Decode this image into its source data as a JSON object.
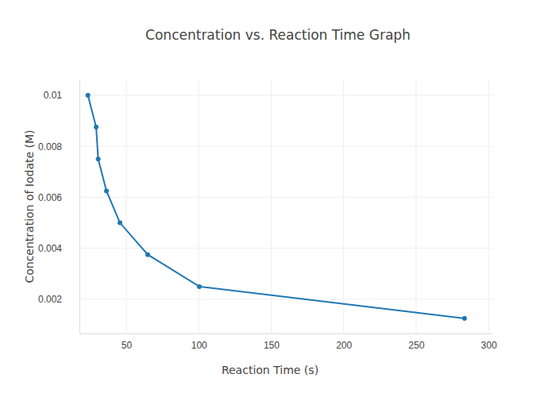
{
  "chart_data": {
    "type": "line",
    "title": "Concentration vs. Reaction Time Graph",
    "x_label": "Reaction Time (s)",
    "y_label": "Concentration of Iodate (M)",
    "x": [
      23.5,
      29.2,
      30.6,
      36.3,
      45.6,
      64.8,
      100.4,
      283.4
    ],
    "values": [
      0.01,
      0.00875,
      0.0075,
      0.00625,
      0.005,
      0.00375,
      0.0025,
      0.00125
    ],
    "color": "#1f77b4",
    "marker": "circle",
    "line_style": "solid",
    "xlim": [
      17.65,
      302.7
    ],
    "xticks": [
      50,
      100,
      150,
      200,
      250,
      300
    ],
    "ylim": [
      0.00066,
      0.01062
    ],
    "yticks": [
      0.002,
      0.004,
      0.006,
      0.008,
      0.01
    ],
    "grid": true
  }
}
